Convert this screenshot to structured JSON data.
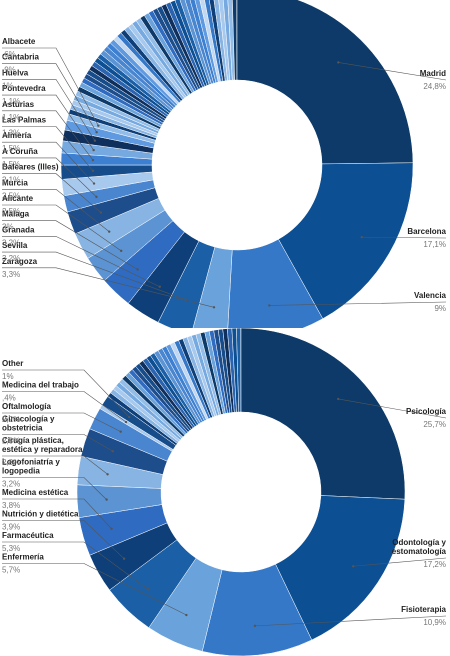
{
  "chart_data": [
    {
      "type": "pie",
      "categories": [
        "Madrid",
        "Barcelona",
        "Valencia",
        "Zaragoza",
        "Sevilla",
        "Granada",
        "Málaga",
        "Alicante",
        "Murcia",
        "Baleares (Illes)",
        "A Coruña",
        "Almería",
        "Las Palmas",
        "Asturias",
        "Pontevedra",
        "Huelva",
        "Cantabria",
        "Albacete"
      ],
      "labels": [
        "Madrid",
        "Barcelona",
        "Valencia",
        "Zaragoza",
        "Sevilla",
        "Granada",
        "Málaga",
        "Alicante",
        "Murcia",
        "Baleares (Illes)",
        "A Coruña",
        "Almería",
        "Las Palmas",
        "Asturias",
        "Pontevedra",
        "Huelva",
        "Cantabria",
        "Albacete"
      ],
      "value_labels": [
        "24,8%",
        "17,1%",
        "9%",
        "3,3%",
        "3,2%",
        "3,2%",
        "3%",
        "2,5%",
        "2,5%",
        "2,1%",
        "1,5%",
        "1,5%",
        "1,3%",
        "1,1%",
        "1,1%",
        "1%",
        ",9%",
        ",6%"
      ],
      "values": [
        24.8,
        17.1,
        9,
        3.3,
        3.2,
        3.2,
        3,
        2.5,
        2.5,
        2.1,
        1.5,
        1.5,
        1.3,
        1.1,
        1.1,
        1,
        0.9,
        0.6
      ],
      "unit": "%"
    },
    {
      "type": "pie",
      "categories": [
        "Psicología",
        "Odontología y estomatología",
        "Fisioterapia",
        "Enfermería",
        "Farmacéutica",
        "Nutrición y dietética",
        "Medicina estética",
        "Logofoniatría y logopedia",
        "Cirugía plástica, estética y reparadora",
        "Ginecología y obstetricia",
        "Oftalmología",
        "Medicina del trabajo",
        "Other"
      ],
      "labels": [
        "Psicología",
        "Odontología y estomatología",
        "Fisioterapia",
        "Enfermería",
        "Farmacéutica",
        "Nutrición y dietética",
        "Medicina estética",
        "Logofoniatría y logopedia",
        "Cirugía plástica, estética y reparadora",
        "Ginecología y obstetricia",
        "Oftalmología",
        "Medicina del trabajo",
        "Other"
      ],
      "value_labels": [
        "25,7%",
        "17,2%",
        "10,9%",
        "5,7%",
        "5,3%",
        "3,9%",
        "3,8%",
        "3,2%",
        "2,8%",
        "2,8%",
        "2,2%",
        ",4%",
        "1%"
      ],
      "values": [
        25.7,
        17.2,
        10.9,
        5.7,
        5.3,
        3.9,
        3.8,
        3.2,
        2.8,
        2.8,
        2.2,
        0.4,
        1
      ],
      "unit": "%"
    }
  ]
}
